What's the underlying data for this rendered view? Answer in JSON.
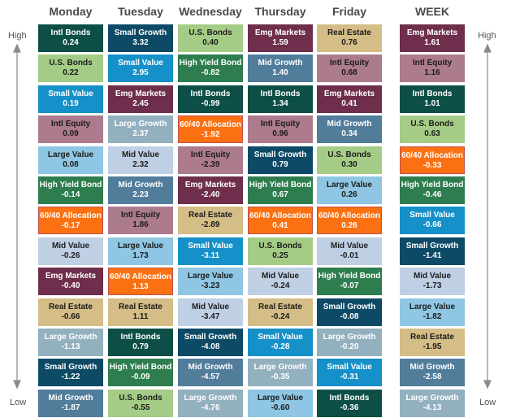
{
  "labels": {
    "high": "High",
    "low": "Low"
  },
  "colors": {
    "Intl Bonds": [
      "#0d4f46",
      "#ffffff"
    ],
    "U.S. Bonds": [
      "#a5cc86",
      "#1c1c1c"
    ],
    "Small Value": [
      "#1690c8",
      "#ffffff"
    ],
    "Intl Equity": [
      "#ac7b8e",
      "#1c1c1c"
    ],
    "Large Value": [
      "#8ec6e3",
      "#1c1c1c"
    ],
    "High Yield Bond": [
      "#2e7d4e",
      "#ffffff"
    ],
    "60/40 Allocation": [
      "#fb7112",
      "#ffffff"
    ],
    "Mid Value": [
      "#bfcfe4",
      "#1c1c1c"
    ],
    "Emg Markets": [
      "#6e2e4c",
      "#ffffff"
    ],
    "Real Estate": [
      "#d4bd86",
      "#1c1c1c"
    ],
    "Large Growth": [
      "#93b0bf",
      "#ffffff"
    ],
    "Small Growth": [
      "#0d4a66",
      "#ffffff"
    ],
    "Mid Growth": [
      "#517d9b",
      "#ffffff"
    ]
  },
  "chart_data": {
    "type": "table",
    "columns": [
      {
        "name": "Monday",
        "rows": [
          {
            "asset": "Intl Bonds",
            "value": "0.24"
          },
          {
            "asset": "U.S. Bonds",
            "value": "0.22"
          },
          {
            "asset": "Small Value",
            "value": "0.19"
          },
          {
            "asset": "Intl Equity",
            "value": "0.09"
          },
          {
            "asset": "Large Value",
            "value": "0.08"
          },
          {
            "asset": "High Yield Bond",
            "value": "-0.14"
          },
          {
            "asset": "60/40 Allocation",
            "value": "-0.17"
          },
          {
            "asset": "Mid Value",
            "value": "-0.26"
          },
          {
            "asset": "Emg Markets",
            "value": "-0.40"
          },
          {
            "asset": "Real Estate",
            "value": "-0.66"
          },
          {
            "asset": "Large Growth",
            "value": "-1.13"
          },
          {
            "asset": "Small Growth",
            "value": "-1.22"
          },
          {
            "asset": "Mid Growth",
            "value": "-1.87"
          }
        ]
      },
      {
        "name": "Tuesday",
        "rows": [
          {
            "asset": "Small Growth",
            "value": "3.32"
          },
          {
            "asset": "Small Value",
            "value": "2.95"
          },
          {
            "asset": "Emg Markets",
            "value": "2.45"
          },
          {
            "asset": "Large Growth",
            "value": "2.37"
          },
          {
            "asset": "Mid Value",
            "value": "2.32"
          },
          {
            "asset": "Mid Growth",
            "value": "2.23"
          },
          {
            "asset": "Intl Equity",
            "value": "1.86"
          },
          {
            "asset": "Large Value",
            "value": "1.73"
          },
          {
            "asset": "60/40 Allocation",
            "value": "1.13"
          },
          {
            "asset": "Real Estate",
            "value": "1.11"
          },
          {
            "asset": "Intl Bonds",
            "value": "0.79"
          },
          {
            "asset": "High Yield Bond",
            "value": "-0.09"
          },
          {
            "asset": "U.S. Bonds",
            "value": "-0.55"
          }
        ]
      },
      {
        "name": "Wednesday",
        "rows": [
          {
            "asset": "U.S. Bonds",
            "value": "0.40"
          },
          {
            "asset": "High Yield Bond",
            "value": "-0.82"
          },
          {
            "asset": "Intl Bonds",
            "value": "-0.99"
          },
          {
            "asset": "60/40 Allocation",
            "value": "-1.92"
          },
          {
            "asset": "Intl Equity",
            "value": "-2.39"
          },
          {
            "asset": "Emg Markets",
            "value": "-2.40"
          },
          {
            "asset": "Real Estate",
            "value": "-2.89"
          },
          {
            "asset": "Small Value",
            "value": "-3.11"
          },
          {
            "asset": "Large Value",
            "value": "-3.23"
          },
          {
            "asset": "Mid Value",
            "value": "-3.47"
          },
          {
            "asset": "Small Growth",
            "value": "-4.08"
          },
          {
            "asset": "Mid Growth",
            "value": "-4.57"
          },
          {
            "asset": "Large Growth",
            "value": "-4.76"
          }
        ]
      },
      {
        "name": "Thursday",
        "rows": [
          {
            "asset": "Emg Markets",
            "value": "1.59"
          },
          {
            "asset": "Mid Growth",
            "value": "1.40"
          },
          {
            "asset": "Intl Bonds",
            "value": "1.34"
          },
          {
            "asset": "Intl Equity",
            "value": "0.96"
          },
          {
            "asset": "Small Growth",
            "value": "0.79"
          },
          {
            "asset": "High Yield Bond",
            "value": "0.67"
          },
          {
            "asset": "60/40 Allocation",
            "value": "0.41"
          },
          {
            "asset": "U.S. Bonds",
            "value": "0.25"
          },
          {
            "asset": "Mid Value",
            "value": "-0.24"
          },
          {
            "asset": "Real Estate",
            "value": "-0.24"
          },
          {
            "asset": "Small Value",
            "value": "-0.28"
          },
          {
            "asset": "Large Growth",
            "value": "-0.35"
          },
          {
            "asset": "Large Value",
            "value": "-0.60"
          }
        ]
      },
      {
        "name": "Friday",
        "rows": [
          {
            "asset": "Real Estate",
            "value": "0.76"
          },
          {
            "asset": "Intl Equity",
            "value": "0.68"
          },
          {
            "asset": "Emg Markets",
            "value": "0.41"
          },
          {
            "asset": "Mid Growth",
            "value": "0.34"
          },
          {
            "asset": "U.S. Bonds",
            "value": "0.30"
          },
          {
            "asset": "Large Value",
            "value": "0.26"
          },
          {
            "asset": "60/40 Allocation",
            "value": "0.26"
          },
          {
            "asset": "Mid Value",
            "value": "-0.01"
          },
          {
            "asset": "High Yield Bond",
            "value": "-0.07"
          },
          {
            "asset": "Small Growth",
            "value": "-0.08"
          },
          {
            "asset": "Large Growth",
            "value": "-0.20"
          },
          {
            "asset": "Small Value",
            "value": "-0.31"
          },
          {
            "asset": "Intl Bonds",
            "value": "-0.36"
          }
        ]
      },
      {
        "name": "WEEK",
        "rows": [
          {
            "asset": "Emg Markets",
            "value": "1.61"
          },
          {
            "asset": "Intl Equity",
            "value": "1.16"
          },
          {
            "asset": "Intl Bonds",
            "value": "1.01"
          },
          {
            "asset": "U.S. Bonds",
            "value": "0.63"
          },
          {
            "asset": "60/40 Allocation",
            "value": "-0.33"
          },
          {
            "asset": "High Yield Bond",
            "value": "-0.46"
          },
          {
            "asset": "Small Value",
            "value": "-0.66"
          },
          {
            "asset": "Small Growth",
            "value": "-1.41"
          },
          {
            "asset": "Mid Value",
            "value": "-1.73"
          },
          {
            "asset": "Large Value",
            "value": "-1.82"
          },
          {
            "asset": "Real Estate",
            "value": "-1.95"
          },
          {
            "asset": "Mid Growth",
            "value": "-2.58"
          },
          {
            "asset": "Large Growth",
            "value": "-4.13"
          }
        ]
      }
    ]
  }
}
